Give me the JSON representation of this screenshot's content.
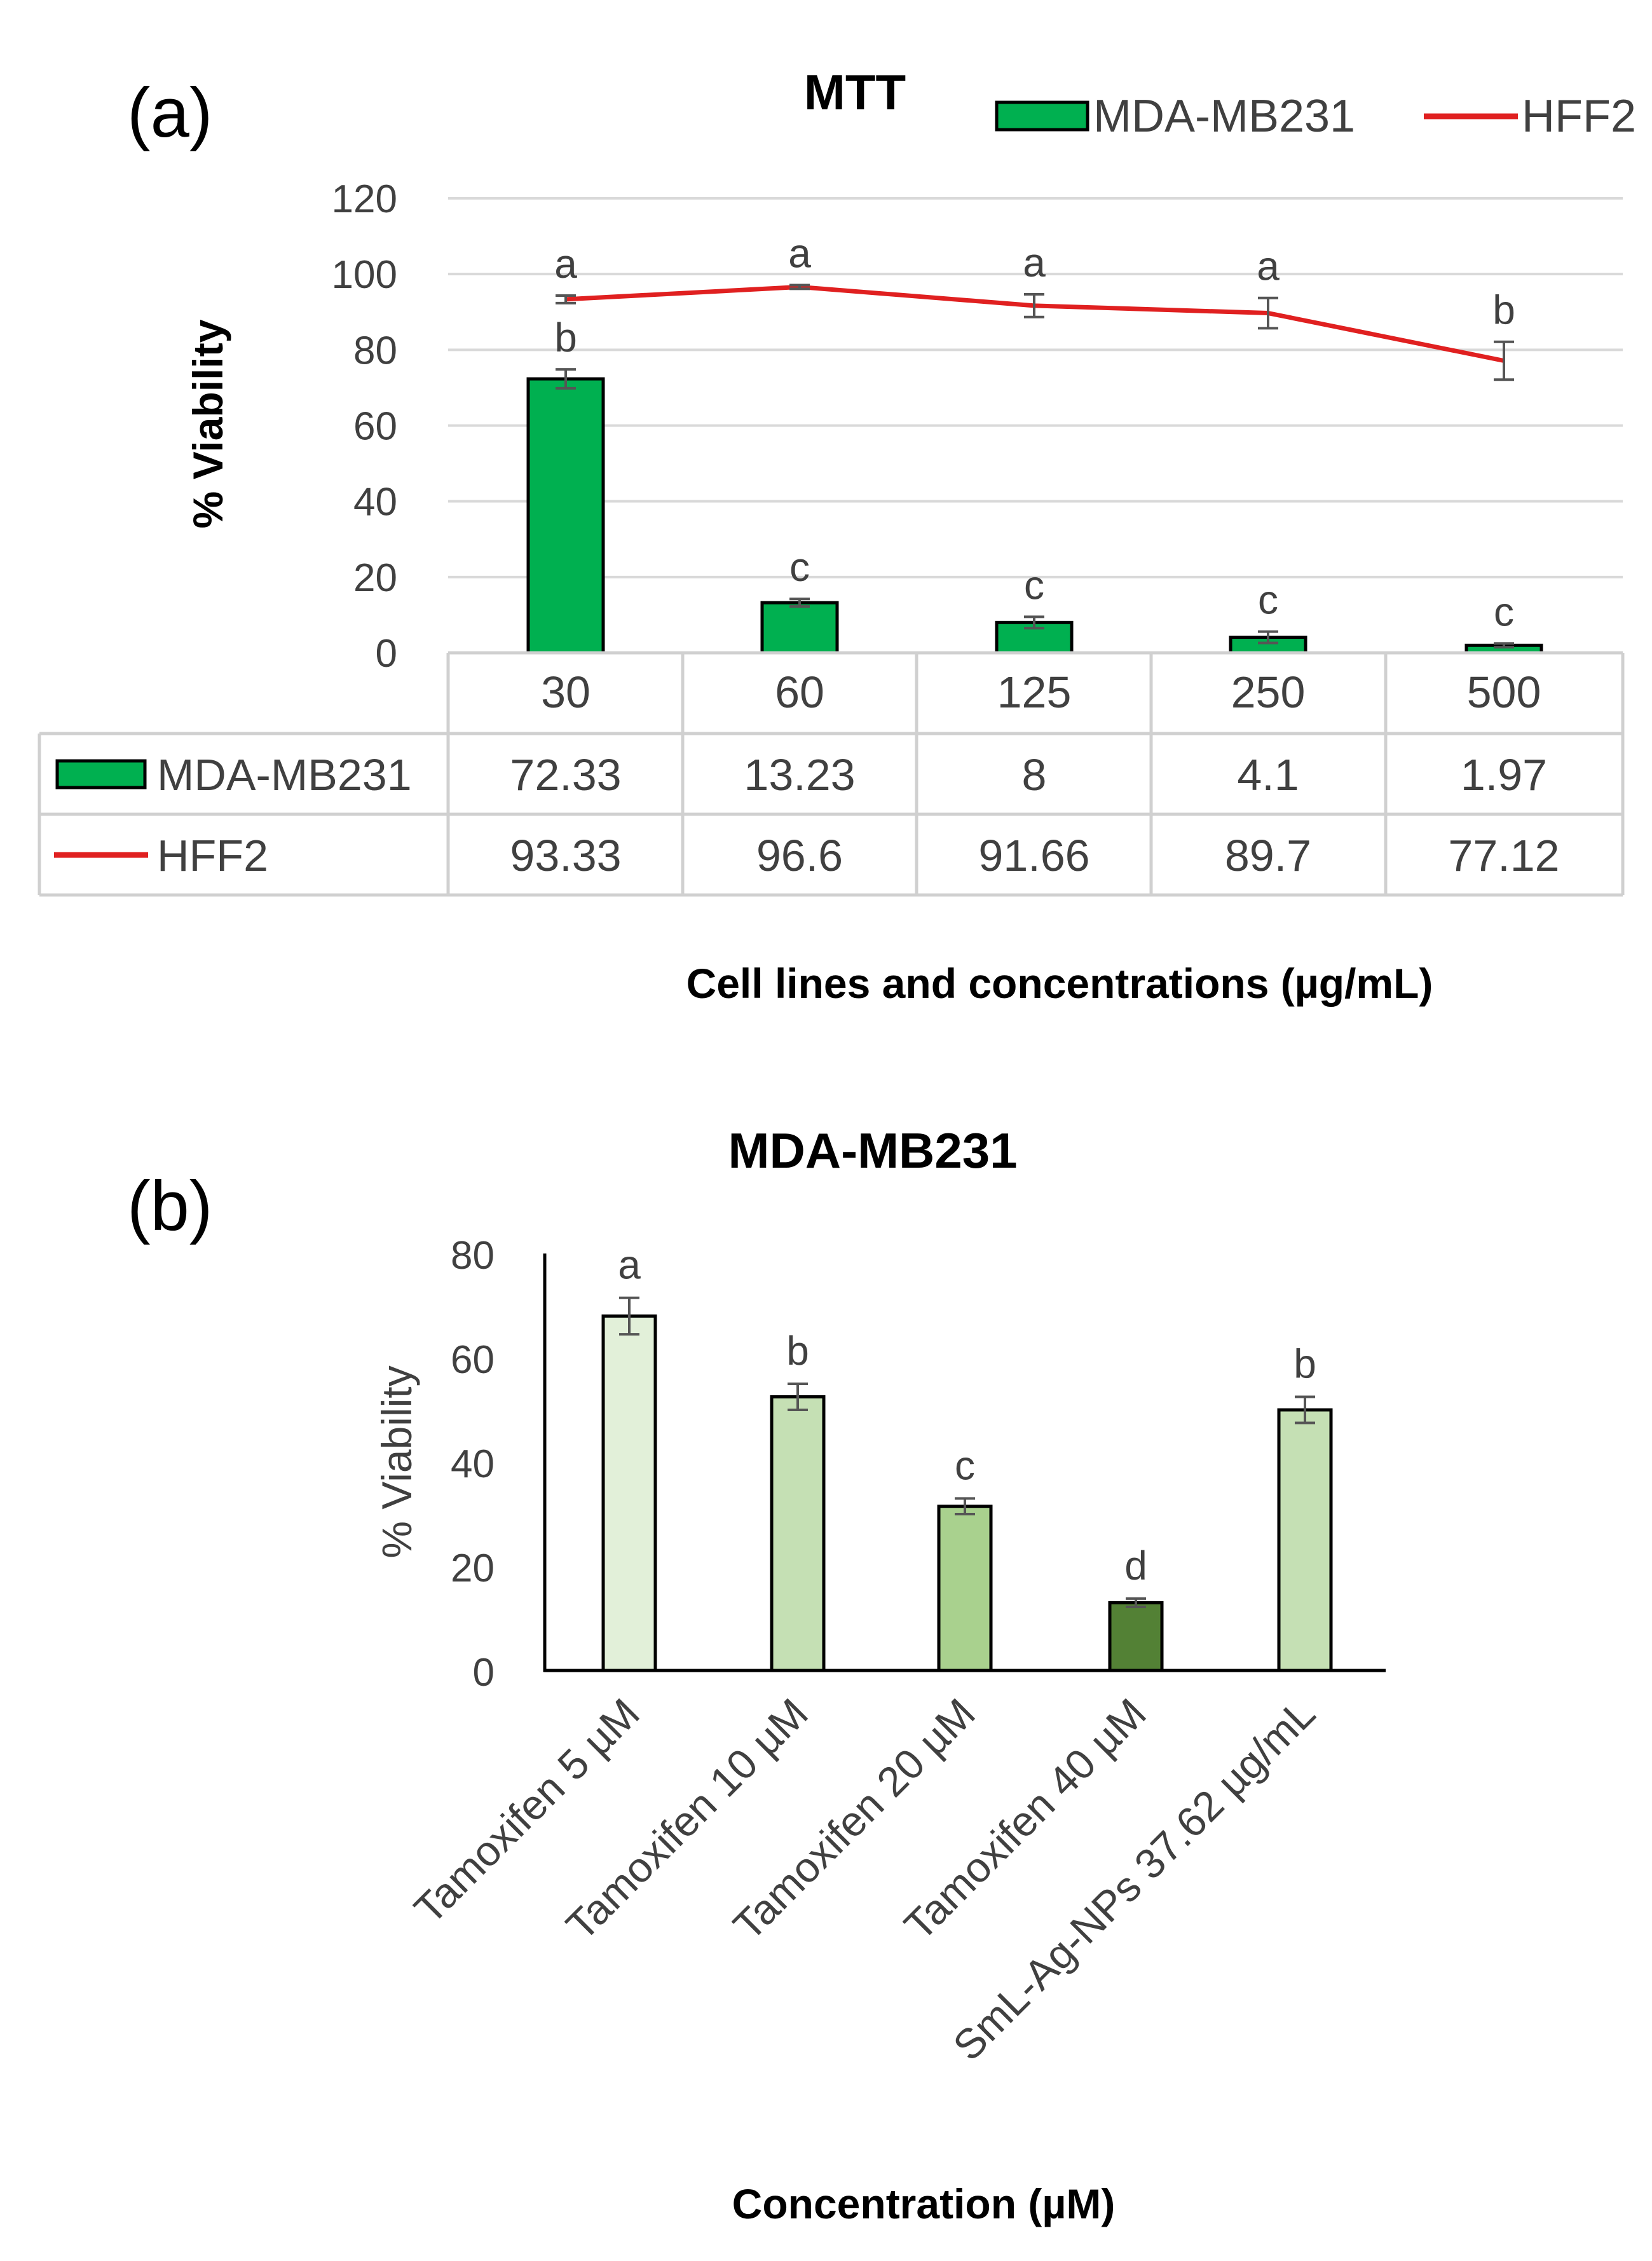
{
  "chart_data": [
    {
      "panel_label": "(a)",
      "type": "bar+line",
      "title": "MTT",
      "xlabel": "Cell lines and concentrations (µg/mL)",
      "ylabel": "% Viability",
      "ylim": [
        0,
        120
      ],
      "yticks": [
        0,
        20,
        40,
        60,
        80,
        100,
        120
      ],
      "categories": [
        "30",
        "60",
        "125",
        "250",
        "500"
      ],
      "series": [
        {
          "name": "MDA-MB231",
          "kind": "bar",
          "color": "#00b050",
          "values": [
            72.33,
            13.23,
            8,
            4.1,
            1.97
          ],
          "value_labels": [
            "72.33",
            "13.23",
            "8",
            "4.1",
            "1.97"
          ],
          "errors": [
            2.5,
            1,
            1.5,
            1.5,
            0.5
          ],
          "letters": [
            "b",
            "c",
            "c",
            "c",
            "c"
          ]
        },
        {
          "name": "HFF2",
          "kind": "line",
          "color": "#e02020",
          "values": [
            93.33,
            96.6,
            91.66,
            89.7,
            77.12
          ],
          "value_labels": [
            "93.33",
            "96.6",
            "91.66",
            "89.7",
            "77.12"
          ],
          "errors": [
            1,
            0.5,
            3,
            4,
            5
          ],
          "letters": [
            "a",
            "a",
            "a",
            "a",
            "b"
          ]
        }
      ],
      "grid": true,
      "data_table": true
    },
    {
      "panel_label": "(b)",
      "type": "bar",
      "title": "MDA-MB231",
      "xlabel": "Concentration (µM)",
      "ylabel": "% Viability",
      "ylim": [
        0,
        80
      ],
      "yticks": [
        0,
        20,
        40,
        60,
        80
      ],
      "categories": [
        "Tamoxifen 5 µM",
        "Tamoxifen 10 µM",
        "Tamoxifen 20 µM",
        "Tamoxifen 40 µM",
        "SmL-Ag-NPs 37.62 µg/mL"
      ],
      "values": [
        68,
        52.5,
        31.5,
        13,
        50
      ],
      "errors": [
        3.5,
        2.5,
        1.5,
        0.8,
        2.5
      ],
      "letters": [
        "a",
        "b",
        "c",
        "d",
        "b"
      ],
      "colors": [
        "#e2f0d9",
        "#c5e0b4",
        "#a9d18e",
        "#538135",
        "#c5e0b4"
      ],
      "grid": false
    }
  ]
}
